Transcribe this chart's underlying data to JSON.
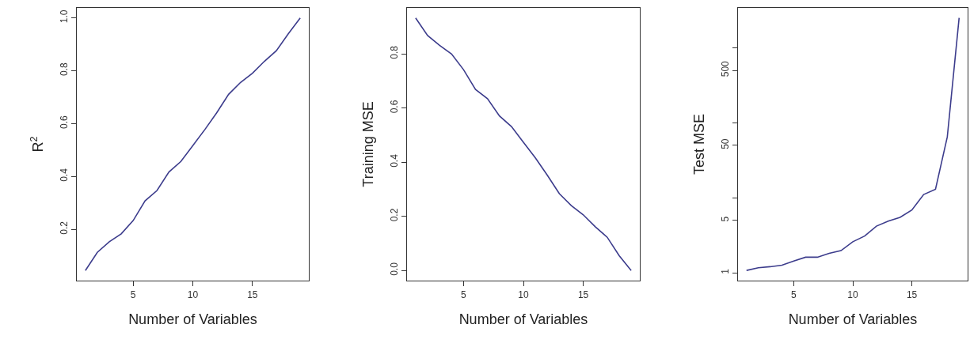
{
  "chart_data": [
    {
      "type": "line",
      "xlabel": "Number of Variables",
      "ylabel": "R$^{2}$",
      "x": [
        1,
        2,
        3,
        4,
        5,
        6,
        7,
        8,
        9,
        10,
        11,
        12,
        13,
        14,
        15,
        16,
        17,
        18,
        19
      ],
      "series": [
        {
          "color": "#3c3c8c",
          "values": [
            0.044,
            0.113,
            0.153,
            0.183,
            0.233,
            0.308,
            0.347,
            0.417,
            0.457,
            0.517,
            0.577,
            0.641,
            0.711,
            0.756,
            0.791,
            0.836,
            0.876,
            0.94,
            1.0
          ]
        }
      ],
      "xlim": [
        0.28,
        19.72
      ],
      "ylim": [
        0.006,
        1.038
      ],
      "xticks": [
        5,
        10,
        15
      ],
      "yticks": [
        0.2,
        0.4,
        0.6,
        0.8,
        {
          "value": 1,
          "label": "1.0"
        }
      ],
      "marker": "none",
      "line_style": "solid"
    },
    {
      "type": "line",
      "xlabel": "Number of Variables",
      "ylabel": "Training MSE",
      "x": [
        1,
        2,
        3,
        4,
        5,
        6,
        7,
        8,
        9,
        10,
        11,
        12,
        13,
        14,
        15,
        16,
        17,
        18,
        19
      ],
      "series": [
        {
          "color": "#3c3c8c",
          "values": [
            0.933,
            0.868,
            0.832,
            0.8,
            0.742,
            0.669,
            0.635,
            0.571,
            0.532,
            0.474,
            0.416,
            0.352,
            0.284,
            0.24,
            0.206,
            0.162,
            0.123,
            0.055,
            0.0
          ]
        }
      ],
      "xlim": [
        0.28,
        19.72
      ],
      "ylim": [
        -0.037,
        0.97
      ],
      "xticks": [
        5,
        10,
        15
      ],
      "yticks": [
        {
          "value": 0,
          "label": "0.0"
        },
        0.2,
        0.4,
        0.6,
        0.8
      ],
      "marker": "none",
      "line_style": "solid"
    },
    {
      "type": "line",
      "xlabel": "Number of Variables",
      "ylabel": "Test MSE",
      "x": [
        1,
        2,
        3,
        4,
        5,
        6,
        7,
        8,
        9,
        10,
        11,
        12,
        13,
        14,
        15,
        16,
        17,
        18,
        19
      ],
      "series": [
        {
          "color": "#3c3c8c",
          "values": [
            1.08,
            1.17,
            1.21,
            1.27,
            1.44,
            1.62,
            1.62,
            1.82,
            1.98,
            2.6,
            3.1,
            4.2,
            4.9,
            5.5,
            6.9,
            11.1,
            13,
            65,
            2500
          ]
        }
      ],
      "xlim": [
        0.28,
        19.72
      ],
      "ylim": [
        0.79,
        3400
      ],
      "xticks": [
        5,
        10,
        15
      ],
      "yticks": [
        1,
        5,
        {
          "value": 10,
          "label": null
        },
        50,
        {
          "value": 100,
          "label": null
        },
        500,
        {
          "value": 1000,
          "label": null
        }
      ],
      "log": true,
      "marker": "none",
      "line_style": "solid"
    }
  ]
}
